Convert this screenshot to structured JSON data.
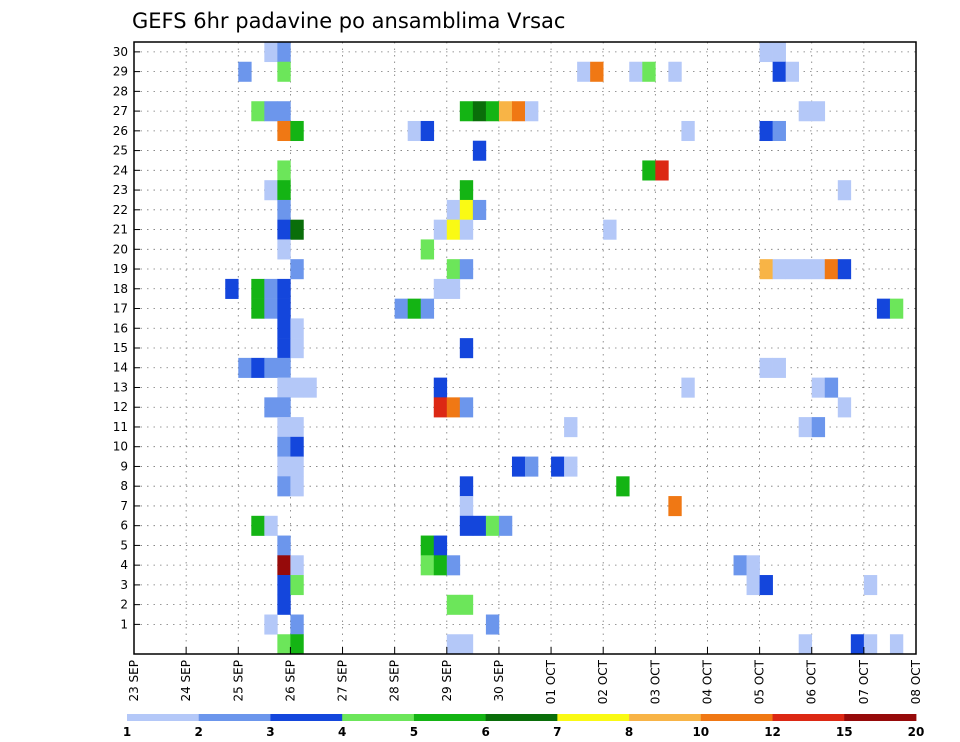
{
  "chart_data": {
    "type": "heatmap",
    "title": "GEFS 6hr padavine po ansamblima Vrsac",
    "xlabel": "",
    "ylabel": "",
    "x_start": "23 SEP",
    "x_step_hours": 6,
    "x_steps": 60,
    "x_tick_labels": [
      "23 SEP",
      "24 SEP",
      "25 SEP",
      "26 SEP",
      "27 SEP",
      "28 SEP",
      "29 SEP",
      "30 SEP",
      "01 OCT",
      "02 OCT",
      "03 OCT",
      "04 OCT",
      "05 OCT",
      "06 OCT",
      "07 OCT",
      "08 OCT"
    ],
    "y_tick_labels": [
      "1",
      "2",
      "3",
      "4",
      "5",
      "6",
      "7",
      "8",
      "9",
      "10",
      "11",
      "12",
      "13",
      "14",
      "15",
      "16",
      "17",
      "18",
      "19",
      "20",
      "21",
      "22",
      "23",
      "24",
      "25",
      "26",
      "27",
      "28",
      "29",
      "30"
    ],
    "grid": true,
    "colorbar": {
      "labels": [
        "1",
        "2",
        "3",
        "4",
        "5",
        "6",
        "7",
        "8",
        "10",
        "12",
        "15",
        "20"
      ],
      "colors": [
        "#b4c8f8",
        "#6c96ec",
        "#1446dc",
        "#6ce65a",
        "#14b414",
        "#0a6e0a",
        "#fafa14",
        "#f8b446",
        "#f07814",
        "#dc2814",
        "#960a0a"
      ]
    },
    "cells": [
      {
        "m": 30,
        "t": 10,
        "v": 1
      },
      {
        "m": 30,
        "t": 11,
        "v": 2
      },
      {
        "m": 30,
        "t": 48,
        "v": 1
      },
      {
        "m": 30,
        "t": 49,
        "v": 1
      },
      {
        "m": 29,
        "t": 8,
        "v": 2
      },
      {
        "m": 29,
        "t": 11,
        "v": 4
      },
      {
        "m": 29,
        "t": 34,
        "v": 1
      },
      {
        "m": 29,
        "t": 35,
        "v": 10
      },
      {
        "m": 29,
        "t": 38,
        "v": 1
      },
      {
        "m": 29,
        "t": 39,
        "v": 4
      },
      {
        "m": 29,
        "t": 41,
        "v": 1
      },
      {
        "m": 29,
        "t": 49,
        "v": 3
      },
      {
        "m": 29,
        "t": 50,
        "v": 1
      },
      {
        "m": 27,
        "t": 9,
        "v": 4
      },
      {
        "m": 27,
        "t": 10,
        "v": 2
      },
      {
        "m": 27,
        "t": 11,
        "v": 2
      },
      {
        "m": 27,
        "t": 25,
        "v": 5
      },
      {
        "m": 27,
        "t": 26,
        "v": 6
      },
      {
        "m": 27,
        "t": 27,
        "v": 5
      },
      {
        "m": 27,
        "t": 28,
        "v": 8
      },
      {
        "m": 27,
        "t": 29,
        "v": 10
      },
      {
        "m": 27,
        "t": 30,
        "v": 1
      },
      {
        "m": 27,
        "t": 51,
        "v": 1
      },
      {
        "m": 27,
        "t": 52,
        "v": 1
      },
      {
        "m": 26,
        "t": 11,
        "v": 10
      },
      {
        "m": 26,
        "t": 12,
        "v": 5
      },
      {
        "m": 26,
        "t": 21,
        "v": 1
      },
      {
        "m": 26,
        "t": 22,
        "v": 3
      },
      {
        "m": 26,
        "t": 42,
        "v": 1
      },
      {
        "m": 26,
        "t": 48,
        "v": 3
      },
      {
        "m": 26,
        "t": 49,
        "v": 2
      },
      {
        "m": 25,
        "t": 26,
        "v": 3
      },
      {
        "m": 24,
        "t": 11,
        "v": 4
      },
      {
        "m": 24,
        "t": 39,
        "v": 5
      },
      {
        "m": 24,
        "t": 40,
        "v": 12
      },
      {
        "m": 23,
        "t": 10,
        "v": 1
      },
      {
        "m": 23,
        "t": 11,
        "v": 5
      },
      {
        "m": 23,
        "t": 25,
        "v": 5
      },
      {
        "m": 23,
        "t": 54,
        "v": 1
      },
      {
        "m": 22,
        "t": 11,
        "v": 2
      },
      {
        "m": 22,
        "t": 24,
        "v": 1
      },
      {
        "m": 22,
        "t": 25,
        "v": 7
      },
      {
        "m": 22,
        "t": 26,
        "v": 2
      },
      {
        "m": 21,
        "t": 11,
        "v": 3
      },
      {
        "m": 21,
        "t": 12,
        "v": 6
      },
      {
        "m": 21,
        "t": 23,
        "v": 1
      },
      {
        "m": 21,
        "t": 24,
        "v": 7
      },
      {
        "m": 21,
        "t": 25,
        "v": 1
      },
      {
        "m": 21,
        "t": 36,
        "v": 1
      },
      {
        "m": 20,
        "t": 11,
        "v": 1
      },
      {
        "m": 20,
        "t": 22,
        "v": 4
      },
      {
        "m": 19,
        "t": 12,
        "v": 2
      },
      {
        "m": 19,
        "t": 24,
        "v": 4
      },
      {
        "m": 19,
        "t": 25,
        "v": 2
      },
      {
        "m": 19,
        "t": 48,
        "v": 8
      },
      {
        "m": 19,
        "t": 49,
        "v": 1
      },
      {
        "m": 19,
        "t": 50,
        "v": 1
      },
      {
        "m": 19,
        "t": 51,
        "v": 1
      },
      {
        "m": 19,
        "t": 52,
        "v": 1
      },
      {
        "m": 19,
        "t": 53,
        "v": 10
      },
      {
        "m": 19,
        "t": 54,
        "v": 3
      },
      {
        "m": 18,
        "t": 7,
        "v": 3
      },
      {
        "m": 18,
        "t": 9,
        "v": 5
      },
      {
        "m": 18,
        "t": 10,
        "v": 2
      },
      {
        "m": 18,
        "t": 11,
        "v": 3
      },
      {
        "m": 18,
        "t": 23,
        "v": 1
      },
      {
        "m": 18,
        "t": 24,
        "v": 1
      },
      {
        "m": 17,
        "t": 9,
        "v": 5
      },
      {
        "m": 17,
        "t": 10,
        "v": 2
      },
      {
        "m": 17,
        "t": 11,
        "v": 3
      },
      {
        "m": 17,
        "t": 20,
        "v": 2
      },
      {
        "m": 17,
        "t": 21,
        "v": 5
      },
      {
        "m": 17,
        "t": 22,
        "v": 2
      },
      {
        "m": 17,
        "t": 57,
        "v": 3
      },
      {
        "m": 17,
        "t": 58,
        "v": 4
      },
      {
        "m": 16,
        "t": 11,
        "v": 3
      },
      {
        "m": 16,
        "t": 12,
        "v": 1
      },
      {
        "m": 15,
        "t": 11,
        "v": 3
      },
      {
        "m": 15,
        "t": 12,
        "v": 1
      },
      {
        "m": 15,
        "t": 25,
        "v": 3
      },
      {
        "m": 14,
        "t": 8,
        "v": 2
      },
      {
        "m": 14,
        "t": 9,
        "v": 3
      },
      {
        "m": 14,
        "t": 10,
        "v": 2
      },
      {
        "m": 14,
        "t": 11,
        "v": 2
      },
      {
        "m": 14,
        "t": 48,
        "v": 1
      },
      {
        "m": 14,
        "t": 49,
        "v": 1
      },
      {
        "m": 13,
        "t": 11,
        "v": 1
      },
      {
        "m": 13,
        "t": 12,
        "v": 1
      },
      {
        "m": 13,
        "t": 13,
        "v": 1
      },
      {
        "m": 13,
        "t": 23,
        "v": 3
      },
      {
        "m": 13,
        "t": 42,
        "v": 1
      },
      {
        "m": 13,
        "t": 52,
        "v": 1
      },
      {
        "m": 13,
        "t": 53,
        "v": 2
      },
      {
        "m": 12,
        "t": 10,
        "v": 2
      },
      {
        "m": 12,
        "t": 11,
        "v": 2
      },
      {
        "m": 12,
        "t": 23,
        "v": 12
      },
      {
        "m": 12,
        "t": 24,
        "v": 10
      },
      {
        "m": 12,
        "t": 25,
        "v": 2
      },
      {
        "m": 12,
        "t": 54,
        "v": 1
      },
      {
        "m": 11,
        "t": 11,
        "v": 1
      },
      {
        "m": 11,
        "t": 12,
        "v": 1
      },
      {
        "m": 11,
        "t": 33,
        "v": 1
      },
      {
        "m": 11,
        "t": 51,
        "v": 1
      },
      {
        "m": 11,
        "t": 52,
        "v": 2
      },
      {
        "m": 10,
        "t": 11,
        "v": 2
      },
      {
        "m": 10,
        "t": 12,
        "v": 3
      },
      {
        "m": 9,
        "t": 11,
        "v": 1
      },
      {
        "m": 9,
        "t": 12,
        "v": 1
      },
      {
        "m": 9,
        "t": 29,
        "v": 3
      },
      {
        "m": 9,
        "t": 30,
        "v": 2
      },
      {
        "m": 9,
        "t": 32,
        "v": 3
      },
      {
        "m": 9,
        "t": 33,
        "v": 1
      },
      {
        "m": 8,
        "t": 11,
        "v": 2
      },
      {
        "m": 8,
        "t": 12,
        "v": 1
      },
      {
        "m": 8,
        "t": 25,
        "v": 3
      },
      {
        "m": 8,
        "t": 37,
        "v": 5
      },
      {
        "m": 7,
        "t": 25,
        "v": 1
      },
      {
        "m": 7,
        "t": 41,
        "v": 10
      },
      {
        "m": 6,
        "t": 9,
        "v": 5
      },
      {
        "m": 6,
        "t": 10,
        "v": 1
      },
      {
        "m": 6,
        "t": 25,
        "v": 3
      },
      {
        "m": 6,
        "t": 26,
        "v": 3
      },
      {
        "m": 6,
        "t": 27,
        "v": 4
      },
      {
        "m": 6,
        "t": 28,
        "v": 2
      },
      {
        "m": 5,
        "t": 11,
        "v": 2
      },
      {
        "m": 5,
        "t": 22,
        "v": 5
      },
      {
        "m": 5,
        "t": 23,
        "v": 3
      },
      {
        "m": 4,
        "t": 11,
        "v": 20
      },
      {
        "m": 4,
        "t": 12,
        "v": 1
      },
      {
        "m": 4,
        "t": 22,
        "v": 4
      },
      {
        "m": 4,
        "t": 23,
        "v": 5
      },
      {
        "m": 4,
        "t": 24,
        "v": 2
      },
      {
        "m": 4,
        "t": 46,
        "v": 2
      },
      {
        "m": 4,
        "t": 47,
        "v": 1
      },
      {
        "m": 3,
        "t": 11,
        "v": 3
      },
      {
        "m": 3,
        "t": 12,
        "v": 4
      },
      {
        "m": 3,
        "t": 47,
        "v": 1
      },
      {
        "m": 3,
        "t": 48,
        "v": 3
      },
      {
        "m": 3,
        "t": 56,
        "v": 1
      },
      {
        "m": 2,
        "t": 11,
        "v": 3
      },
      {
        "m": 2,
        "t": 24,
        "v": 4
      },
      {
        "m": 2,
        "t": 25,
        "v": 4
      },
      {
        "m": 1,
        "t": 10,
        "v": 1
      },
      {
        "m": 1,
        "t": 12,
        "v": 2
      },
      {
        "m": 1,
        "t": 27,
        "v": 2
      },
      {
        "m": 0,
        "t": 11,
        "v": 4
      },
      {
        "m": 0,
        "t": 12,
        "v": 5
      },
      {
        "m": 0,
        "t": 24,
        "v": 1
      },
      {
        "m": 0,
        "t": 25,
        "v": 1
      },
      {
        "m": 0,
        "t": 51,
        "v": 1
      },
      {
        "m": 0,
        "t": 55,
        "v": 3
      },
      {
        "m": 0,
        "t": 56,
        "v": 1
      },
      {
        "m": 0,
        "t": 58,
        "v": 1
      }
    ]
  }
}
